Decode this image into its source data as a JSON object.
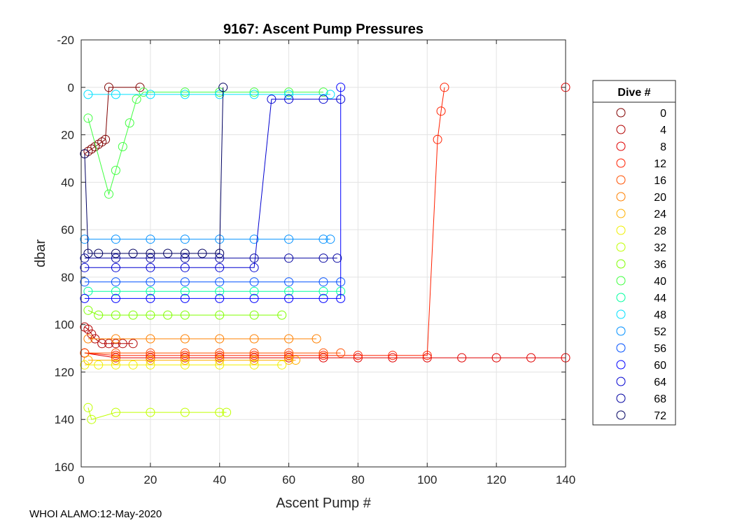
{
  "footer": "WHOI ALAMO:12-May-2020",
  "chart_data": {
    "type": "scatter",
    "title": "9167: Ascent Pump Pressures",
    "xlabel": "Ascent Pump #",
    "ylabel": "dbar",
    "xlim": [
      0,
      140
    ],
    "ylim": [
      -20,
      160
    ],
    "y_reversed": true,
    "xticks": [
      0,
      20,
      40,
      60,
      80,
      100,
      120,
      140
    ],
    "yticks": [
      -20,
      0,
      20,
      40,
      60,
      80,
      100,
      120,
      140,
      160
    ],
    "grid": true,
    "marker": "open-circle",
    "legend": {
      "title": "Dive #",
      "placement": "right"
    },
    "series": [
      {
        "name": "0",
        "color": "#800000",
        "x": [
          1,
          2,
          3,
          4,
          5,
          6,
          7,
          8,
          17
        ],
        "y": [
          28,
          27,
          26,
          25,
          24,
          23,
          22,
          0,
          0
        ]
      },
      {
        "name": "4",
        "color": "#b20000",
        "x": [
          1,
          2,
          3,
          4,
          6,
          8,
          10,
          12,
          15
        ],
        "y": [
          101,
          102,
          104,
          106,
          108,
          108,
          108,
          108,
          108
        ]
      },
      {
        "name": "8",
        "color": "#e00000",
        "x": [
          1,
          10,
          20,
          30,
          40,
          50,
          60,
          70,
          80,
          90,
          100,
          110,
          120,
          130,
          140,
          140
        ],
        "y": [
          112,
          114,
          114,
          114,
          114,
          114,
          114,
          114,
          114,
          114,
          114,
          114,
          114,
          114,
          114,
          0
        ]
      },
      {
        "name": "12",
        "color": "#ff2000",
        "x": [
          1,
          10,
          20,
          30,
          40,
          50,
          60,
          70,
          80,
          90,
          100,
          103,
          104,
          105
        ],
        "y": [
          112,
          113,
          113,
          113,
          113,
          113,
          113,
          113,
          113,
          113,
          113,
          22,
          10,
          0
        ]
      },
      {
        "name": "16",
        "color": "#ff5000",
        "x": [
          1,
          10,
          20,
          30,
          40,
          50,
          60,
          70,
          75
        ],
        "y": [
          112,
          112,
          112,
          112,
          112,
          112,
          112,
          112,
          112
        ]
      },
      {
        "name": "20",
        "color": "#ff8000",
        "x": [
          2,
          10,
          20,
          30,
          40,
          50,
          60,
          68
        ],
        "y": [
          106,
          106,
          106,
          106,
          106,
          106,
          106,
          106
        ]
      },
      {
        "name": "24",
        "color": "#ffb000",
        "x": [
          2,
          10,
          20,
          30,
          40,
          50,
          60,
          62
        ],
        "y": [
          115,
          115,
          115,
          115,
          115,
          115,
          115,
          115
        ]
      },
      {
        "name": "28",
        "color": "#f0f000",
        "x": [
          1,
          5,
          10,
          15,
          20,
          30,
          40,
          50,
          58
        ],
        "y": [
          117,
          117,
          117,
          117,
          117,
          117,
          117,
          117,
          117
        ]
      },
      {
        "name": "32",
        "color": "#c0ff00",
        "x": [
          2,
          3,
          10,
          20,
          30,
          40,
          42
        ],
        "y": [
          135,
          140,
          137,
          137,
          137,
          137,
          137
        ]
      },
      {
        "name": "36",
        "color": "#80ff00",
        "x": [
          2,
          5,
          10,
          15,
          20,
          25,
          30,
          40,
          50,
          58
        ],
        "y": [
          94,
          96,
          96,
          96,
          96,
          96,
          96,
          96,
          96,
          96
        ]
      },
      {
        "name": "40",
        "color": "#40ff40",
        "x": [
          2,
          8,
          10,
          12,
          14,
          16,
          18,
          30,
          40,
          50,
          60,
          70
        ],
        "y": [
          13,
          45,
          35,
          25,
          15,
          5,
          2,
          2,
          2,
          2,
          2,
          2
        ]
      },
      {
        "name": "44",
        "color": "#00ffa0",
        "x": [
          2,
          10,
          20,
          30,
          40,
          50,
          60,
          70,
          75
        ],
        "y": [
          86,
          86,
          86,
          86,
          86,
          86,
          86,
          86,
          86
        ]
      },
      {
        "name": "48",
        "color": "#00e0ff",
        "x": [
          2,
          10,
          20,
          30,
          40,
          50,
          60,
          72
        ],
        "y": [
          3,
          3,
          3,
          3,
          3,
          3,
          3,
          3
        ]
      },
      {
        "name": "52",
        "color": "#0090ff",
        "x": [
          1,
          10,
          20,
          30,
          40,
          50,
          60,
          70,
          72
        ],
        "y": [
          64,
          64,
          64,
          64,
          64,
          64,
          64,
          64,
          64
        ]
      },
      {
        "name": "56",
        "color": "#0050ff",
        "x": [
          1,
          10,
          20,
          30,
          40,
          50,
          60,
          70,
          75
        ],
        "y": [
          82,
          82,
          82,
          82,
          82,
          82,
          82,
          82,
          82
        ]
      },
      {
        "name": "60",
        "color": "#0000ff",
        "x": [
          1,
          10,
          20,
          30,
          40,
          50,
          60,
          70,
          75,
          75
        ],
        "y": [
          89,
          89,
          89,
          89,
          89,
          89,
          89,
          89,
          89,
          0
        ]
      },
      {
        "name": "64",
        "color": "#0000d0",
        "x": [
          1,
          10,
          20,
          30,
          40,
          50,
          55,
          60,
          70,
          75
        ],
        "y": [
          76,
          76,
          76,
          76,
          76,
          76,
          5,
          5,
          5,
          5
        ]
      },
      {
        "name": "68",
        "color": "#0000a0",
        "x": [
          1,
          10,
          20,
          30,
          40,
          50,
          60,
          70,
          74
        ],
        "y": [
          72,
          72,
          72,
          72,
          72,
          72,
          72,
          72,
          72
        ]
      },
      {
        "name": "72",
        "color": "#000060",
        "x": [
          1,
          2,
          5,
          10,
          15,
          20,
          25,
          30,
          35,
          40,
          41
        ],
        "y": [
          28,
          70,
          70,
          70,
          70,
          70,
          70,
          70,
          70,
          70,
          0
        ]
      }
    ]
  }
}
